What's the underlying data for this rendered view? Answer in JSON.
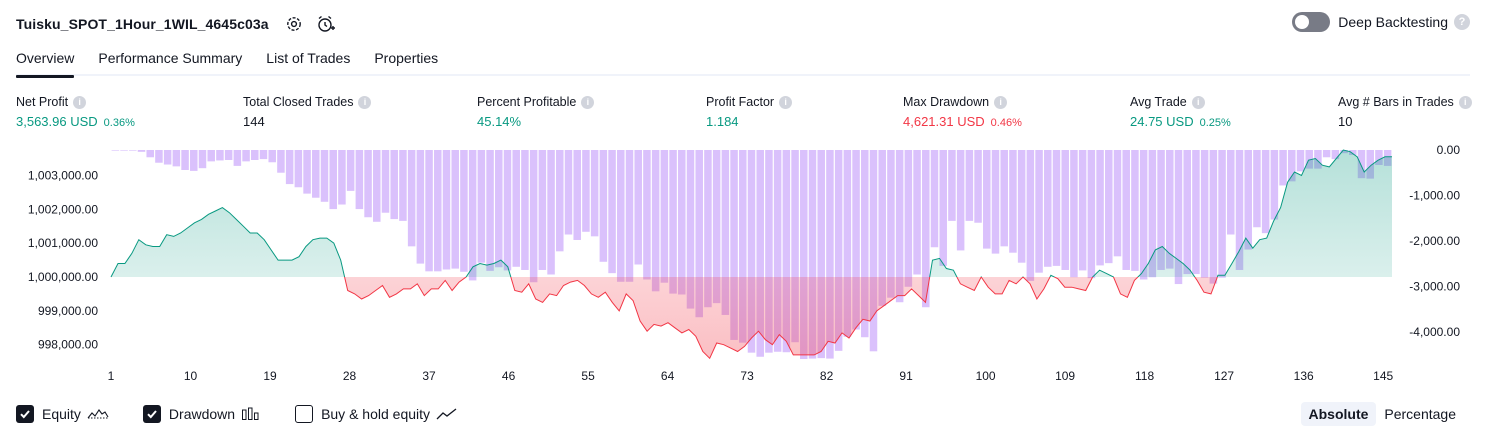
{
  "header": {
    "title": "Tuisku_SPOT_1Hour_1WIL_4645c03a",
    "settings_icon": "gear-icon",
    "alert_icon": "alarm-clock-plus-icon"
  },
  "deep_backtesting": {
    "label": "Deep Backtesting",
    "enabled": false,
    "help": "?"
  },
  "tabs": [
    {
      "label": "Overview",
      "active": true
    },
    {
      "label": "Performance Summary",
      "active": false
    },
    {
      "label": "List of Trades",
      "active": false
    },
    {
      "label": "Properties",
      "active": false
    }
  ],
  "metrics": [
    {
      "label": "Net Profit",
      "value": "3,563.96 USD",
      "pct": "0.36%",
      "color": "#089981"
    },
    {
      "label": "Total Closed Trades",
      "value": "144",
      "pct": "",
      "color": "#131722"
    },
    {
      "label": "Percent Profitable",
      "value": "45.14%",
      "pct": "",
      "color": "#089981"
    },
    {
      "label": "Profit Factor",
      "value": "1.184",
      "pct": "",
      "color": "#089981"
    },
    {
      "label": "Max Drawdown",
      "value": "4,621.31 USD",
      "pct": "0.46%",
      "color": "#f23645"
    },
    {
      "label": "Avg Trade",
      "value": "24.75 USD",
      "pct": "0.25%",
      "color": "#089981"
    },
    {
      "label": "Avg # Bars in Trades",
      "value": "10",
      "pct": "",
      "color": "#131722"
    }
  ],
  "chart_data": {
    "type": "line",
    "x_ticks": [
      "1",
      "10",
      "19",
      "28",
      "37",
      "46",
      "55",
      "64",
      "73",
      "82",
      "91",
      "100",
      "109",
      "118",
      "127",
      "136",
      "145"
    ],
    "x_range": [
      1,
      146
    ],
    "left_axis": {
      "ticks": [
        "1,003,000.00",
        "1,002,000.00",
        "1,001,000.00",
        "1,000,000.00",
        "999,000.00",
        "998,000.00"
      ],
      "tick_values": [
        1003000,
        1002000,
        1001000,
        1000000,
        999000,
        998000
      ],
      "range": [
        997600,
        1003750
      ]
    },
    "right_axis": {
      "ticks": [
        "0.00",
        "-1,000.00",
        "-2,000.00",
        "-3,000.00",
        "-4,000.00"
      ],
      "tick_values": [
        0,
        -1000,
        -2000,
        -3000,
        -4000
      ],
      "range": [
        -4621.31,
        0
      ]
    },
    "series": [
      {
        "name": "Equity",
        "color_up": "#089981",
        "color_down": "#f23645",
        "base": 1000000,
        "values": [
          1000000,
          1000400,
          1000400,
          1000700,
          1001100,
          1000950,
          1000900,
          1000900,
          1001250,
          1001200,
          1001300,
          1001450,
          1001600,
          1001700,
          1001850,
          1001950,
          1002050,
          1001900,
          1001700,
          1001500,
          1001300,
          1001300,
          1001100,
          1000800,
          1000500,
          1000500,
          1000500,
          1000600,
          1000900,
          1001100,
          1001150,
          1001150,
          1001000,
          1000500,
          999600,
          999500,
          999350,
          999450,
          999600,
          999750,
          999400,
          999500,
          999650,
          999650,
          999800,
          999450,
          999650,
          999650,
          999900,
          999600,
          999850,
          1000000,
          1000300,
          1000400,
          1000350,
          1000400,
          1000500,
          1000300,
          999600,
          999550,
          999800,
          999350,
          999250,
          999500,
          999450,
          999750,
          999850,
          999900,
          999750,
          999500,
          999400,
          999550,
          999250,
          999000,
          999500,
          999300,
          998700,
          998400,
          998600,
          998550,
          998650,
          998500,
          998350,
          998450,
          998250,
          997800,
          997600,
          998050,
          998000,
          997900,
          997800,
          997950,
          998200,
          998400,
          998150,
          998000,
          998300,
          998100,
          997700,
          997700,
          997700,
          997700,
          997800,
          998100,
          998050,
          998350,
          998200,
          998500,
          998750,
          998700,
          999000,
          999150,
          999300,
          999450,
          999450,
          999650,
          999450,
          999250,
          1000500,
          1000550,
          1000250,
          1000200,
          999800,
          999700,
          999600,
          1000000,
          999700,
          999500,
          999500,
          999900,
          999800,
          1000000,
          999800,
          999350,
          999650,
          1000050,
          999950,
          999700,
          999700,
          999650,
          999600,
          1000000,
          1000200,
          1000100,
          1000000,
          999500,
          999400,
          999900,
          1000100,
          1000400,
          1000800,
          1000900,
          1000700,
          1000550,
          1000400,
          1000200,
          999900,
          999550,
          999500,
          1000050,
          1000050,
          1000400,
          1000750,
          1001150,
          1000850,
          1001100,
          1001150,
          1001650,
          1002050,
          1002800,
          1003100,
          1003000,
          1003450,
          1003500,
          1003300,
          1003250,
          1003500,
          1003750,
          1003700,
          1003550,
          1003100,
          1003300,
          1003450,
          1003550,
          1003550
        ]
      },
      {
        "name": "Drawdown",
        "color": "#c39bfa",
        "values": [
          -10,
          -10,
          -10,
          -40,
          -160,
          -280,
          -320,
          -360,
          -440,
          -460,
          -400,
          -250,
          -230,
          -220,
          -350,
          -250,
          -220,
          -200,
          -270,
          -500,
          -750,
          -820,
          -960,
          -1050,
          -1140,
          -1300,
          -1200,
          -900,
          -1300,
          -1480,
          -1580,
          -1380,
          -1520,
          -1560,
          -2120,
          -2500,
          -2670,
          -2670,
          -2630,
          -2610,
          -2680,
          -2870,
          -2480,
          -2660,
          -2580,
          -2650,
          -2570,
          -2640,
          -2910,
          -2640,
          -2740,
          -2230,
          -1860,
          -1980,
          -1800,
          -1900,
          -2460,
          -2710,
          -2900,
          -2900,
          -2520,
          -2850,
          -3110,
          -2920,
          -3160,
          -3180,
          -3490,
          -3680,
          -3460,
          -3370,
          -3630,
          -4180,
          -4240,
          -4460,
          -4550,
          -4460,
          -4440,
          -4450,
          -4230,
          -4600,
          -4590,
          -4580,
          -4590,
          -4420,
          -4110,
          -3950,
          -4120,
          -4430,
          -3430,
          -3250,
          -3350,
          -3010,
          -2740,
          -3460,
          -2140,
          -2550,
          -1560,
          -2210,
          -1560,
          -1600,
          -2170,
          -2280,
          -2120,
          -2260,
          -2480,
          -2880,
          -2700,
          -2570,
          -2550,
          -2640,
          -2800,
          -2650,
          -2820,
          -2540,
          -2490,
          -2340,
          -2640,
          -2660,
          -2850,
          -2800,
          -2640,
          -2610,
          -2950,
          -2730,
          -2730,
          -2810,
          -2940,
          -2810,
          -1860,
          -2640,
          -2190,
          -1700,
          -1830,
          -1530,
          -780,
          -690,
          -470,
          -410,
          -410,
          -160,
          -200,
          -70,
          -110,
          -620,
          -630,
          -330,
          -350
        ]
      }
    ]
  },
  "legend": [
    {
      "label": "Equity",
      "checked": true,
      "icon": "equity-line-icon"
    },
    {
      "label": "Drawdown",
      "checked": true,
      "icon": "drawdown-bars-icon"
    },
    {
      "label": "Buy & hold equity",
      "checked": false,
      "icon": "buy-hold-line-icon"
    }
  ],
  "mode": {
    "absolute": "Absolute",
    "percentage": "Percentage",
    "selected": "Absolute"
  }
}
